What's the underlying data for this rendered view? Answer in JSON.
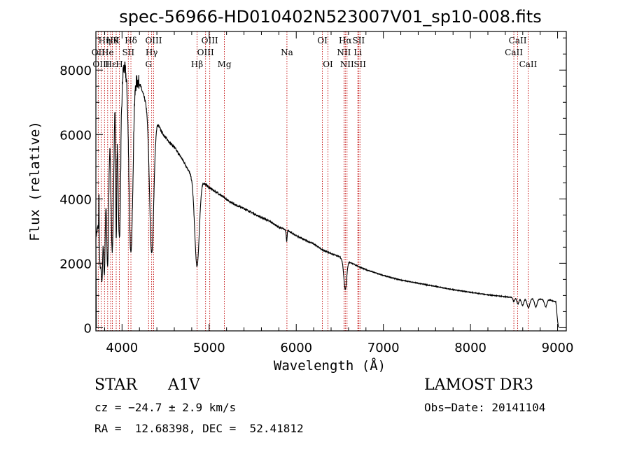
{
  "chart_data": {
    "type": "line",
    "title": "spec-56966-HD010402N523007V01_sp10-008.fits",
    "xlabel": "Wavelength (Å)",
    "ylabel": "Flux (relative)",
    "xlim": [
      3700,
      9100
    ],
    "ylim": [
      -100,
      9200
    ],
    "xticks": [
      4000,
      5000,
      6000,
      7000,
      8000,
      9000
    ],
    "yticks": [
      0,
      2000,
      4000,
      6000,
      8000
    ],
    "series": [
      {
        "name": "spectrum",
        "continuum": [
          [
            3700,
            2800
          ],
          [
            3750,
            3600
          ],
          [
            3800,
            5200
          ],
          [
            3850,
            6500
          ],
          [
            3900,
            7500
          ],
          [
            3950,
            8000
          ],
          [
            4000,
            8200
          ],
          [
            4050,
            8000
          ],
          [
            4100,
            7800
          ],
          [
            4150,
            7750
          ],
          [
            4200,
            7600
          ],
          [
            4250,
            7200
          ],
          [
            4300,
            6800
          ],
          [
            4350,
            6450
          ],
          [
            4400,
            6400
          ],
          [
            4450,
            6100
          ],
          [
            4500,
            5900
          ],
          [
            4600,
            5600
          ],
          [
            4700,
            5200
          ],
          [
            4780,
            4800
          ],
          [
            4830,
            4600
          ],
          [
            4900,
            4620
          ],
          [
            4950,
            4480
          ],
          [
            5000,
            4350
          ],
          [
            5100,
            4180
          ],
          [
            5200,
            3980
          ],
          [
            5300,
            3820
          ],
          [
            5400,
            3700
          ],
          [
            5500,
            3560
          ],
          [
            5600,
            3420
          ],
          [
            5700,
            3300
          ],
          [
            5800,
            3120
          ],
          [
            5900,
            3020
          ],
          [
            6000,
            2860
          ],
          [
            6100,
            2720
          ],
          [
            6200,
            2600
          ],
          [
            6300,
            2420
          ],
          [
            6400,
            2300
          ],
          [
            6500,
            2200
          ],
          [
            6550,
            2040
          ],
          [
            6600,
            2050
          ],
          [
            6700,
            1920
          ],
          [
            6800,
            1800
          ],
          [
            7000,
            1620
          ],
          [
            7200,
            1480
          ],
          [
            7400,
            1380
          ],
          [
            7600,
            1280
          ],
          [
            7800,
            1180
          ],
          [
            8000,
            1100
          ],
          [
            8200,
            1020
          ],
          [
            8400,
            960
          ],
          [
            8500,
            930
          ],
          [
            8700,
            900
          ],
          [
            8900,
            870
          ],
          [
            8980,
            800
          ],
          [
            9000,
            200
          ],
          [
            9010,
            0
          ]
        ],
        "absorption_lines": [
          {
            "center": 3750,
            "depth": 1600,
            "width": 10
          },
          {
            "center": 3771,
            "depth": 2500,
            "width": 9
          },
          {
            "center": 3798,
            "depth": 3400,
            "width": 10
          },
          {
            "center": 3835,
            "depth": 4200,
            "width": 12
          },
          {
            "center": 3889,
            "depth": 4900,
            "width": 15
          },
          {
            "center": 3933,
            "depth": 4500,
            "width": 6
          },
          {
            "center": 3970,
            "depth": 5300,
            "width": 17
          },
          {
            "center": 4102,
            "depth": 5500,
            "width": 22
          },
          {
            "center": 4340,
            "depth": 4200,
            "width": 24
          },
          {
            "center": 4861,
            "depth": 2700,
            "width": 26
          },
          {
            "center": 5890,
            "depth": 350,
            "width": 5
          },
          {
            "center": 6563,
            "depth": 850,
            "width": 16
          },
          {
            "center": 8498,
            "depth": 120,
            "width": 10
          },
          {
            "center": 8545,
            "depth": 180,
            "width": 12
          },
          {
            "center": 8598,
            "depth": 220,
            "width": 14
          },
          {
            "center": 8665,
            "depth": 280,
            "width": 16
          },
          {
            "center": 8750,
            "depth": 250,
            "width": 14
          },
          {
            "center": 8863,
            "depth": 230,
            "width": 14
          }
        ],
        "emission_spikes": [
          {
            "center": 3735,
            "height": 1500,
            "width": 2
          },
          {
            "center": 3990,
            "height": 600,
            "width": 4
          },
          {
            "center": 4140,
            "height": 200,
            "width": 4
          }
        ]
      }
    ],
    "line_markers": [
      {
        "wavelength": 3727,
        "label": "OII",
        "row": 1
      },
      {
        "wavelength": 3760,
        "label": "OIII",
        "row": 2
      },
      {
        "wavelength": 3799,
        "label": "Hη",
        "row": 0
      },
      {
        "wavelength": 3835,
        "label": "He",
        "row": 1
      },
      {
        "wavelength": 3869,
        "label": "Hε",
        "row": 2
      },
      {
        "wavelength": 3889,
        "label": "Hθ",
        "row": 0
      },
      {
        "wavelength": 3933,
        "label": "K",
        "row": 0
      },
      {
        "wavelength": 3969,
        "label": "H",
        "row": 2
      },
      {
        "wavelength": 4072,
        "label": "SII",
        "row": 1
      },
      {
        "wavelength": 4102,
        "label": "Hδ",
        "row": 0
      },
      {
        "wavelength": 4305,
        "label": "G",
        "row": 2
      },
      {
        "wavelength": 4340,
        "label": "Hγ",
        "row": 1
      },
      {
        "wavelength": 4363,
        "label": "OIII",
        "row": 0
      },
      {
        "wavelength": 4861,
        "label": "Hβ",
        "row": 2
      },
      {
        "wavelength": 4959,
        "label": "OIII",
        "row": 1
      },
      {
        "wavelength": 5007,
        "label": "OIII",
        "row": 0
      },
      {
        "wavelength": 5175,
        "label": "Mg",
        "row": 2
      },
      {
        "wavelength": 5893,
        "label": "Na",
        "row": 1
      },
      {
        "wavelength": 6300,
        "label": "OI",
        "row": 0
      },
      {
        "wavelength": 6364,
        "label": "OI",
        "row": 2
      },
      {
        "wavelength": 6548,
        "label": "NII",
        "row": 1
      },
      {
        "wavelength": 6563,
        "label": "Hα",
        "row": 0
      },
      {
        "wavelength": 6583,
        "label": "NII",
        "row": 2
      },
      {
        "wavelength": 6707,
        "label": "Li",
        "row": 1
      },
      {
        "wavelength": 6716,
        "label": "SII",
        "row": 0
      },
      {
        "wavelength": 6731,
        "label": "SII",
        "row": 2
      },
      {
        "wavelength": 8498,
        "label": "CaII",
        "row": 1
      },
      {
        "wavelength": 8542,
        "label": "CaII",
        "row": 0
      },
      {
        "wavelength": 8662,
        "label": "CaII",
        "row": 2
      }
    ]
  },
  "info": {
    "object_class": "STAR",
    "subclass": "A1V",
    "survey": "LAMOST DR3",
    "redshift": "cz = −24.7 ± 2.9 km/s",
    "obs_date": "Obs−Date: 20141104",
    "coords": "RA =  12.68398, DEC =  52.41812"
  },
  "colors": {
    "marker_line": "#c00000",
    "spectrum": "#000000"
  }
}
